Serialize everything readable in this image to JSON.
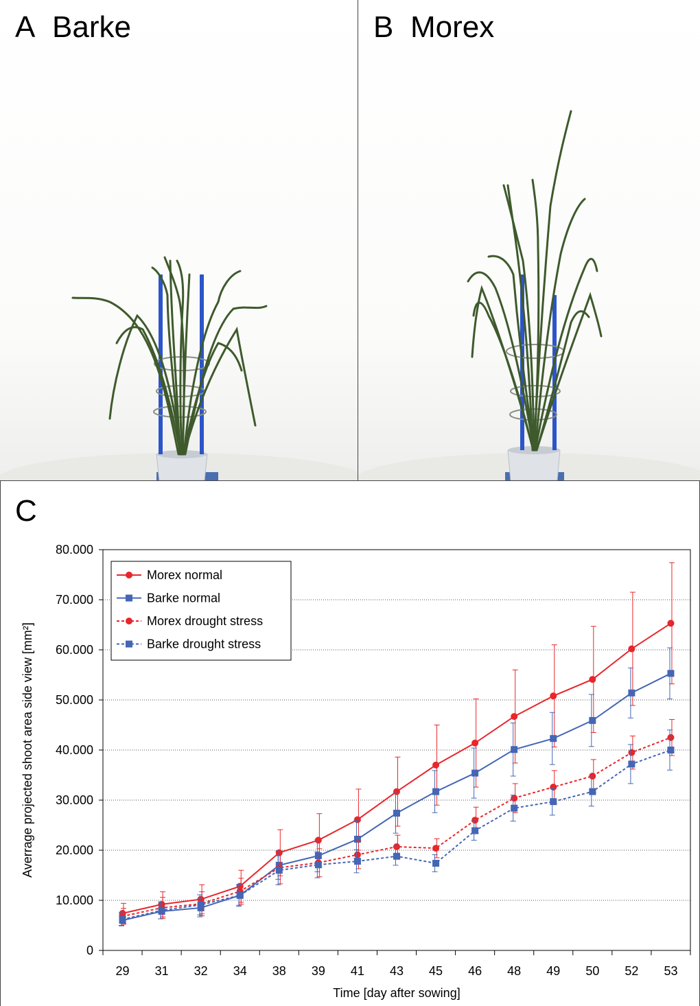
{
  "panel_a": {
    "letter": "A",
    "title": "Barke"
  },
  "panel_b": {
    "letter": "B",
    "title": "Morex"
  },
  "panel_c": {
    "letter": "C"
  },
  "chart_data": {
    "type": "line",
    "title": "",
    "xlabel": "Time [day after sowing]",
    "ylabel": "Averrage projected shoot area side view [mm²]",
    "categories": [
      "29",
      "31",
      "32",
      "34",
      "38",
      "39",
      "41",
      "43",
      "45",
      "46",
      "48",
      "49",
      "50",
      "52",
      "53"
    ],
    "ylim": [
      0,
      80000
    ],
    "yticks": [
      0,
      10000,
      20000,
      30000,
      40000,
      50000,
      60000,
      70000,
      80000
    ],
    "ytick_labels": [
      "0",
      "10.000",
      "20.000",
      "30.000",
      "40.000",
      "50.000",
      "60.000",
      "70.000",
      "80.000"
    ],
    "grid": "horizontal dotted",
    "legend_position": "top-left",
    "series": [
      {
        "name": "Morex normal",
        "color": "#e8262b",
        "line": "solid",
        "marker": "circle",
        "values": [
          7400,
          9200,
          10200,
          12800,
          19500,
          22000,
          26100,
          31700,
          37000,
          41400,
          46700,
          50800,
          54100,
          60200,
          65300
        ],
        "errors": [
          2000,
          2500,
          2900,
          3200,
          4600,
          5300,
          6100,
          6900,
          8000,
          8800,
          9300,
          10200,
          10600,
          11300,
          12100
        ]
      },
      {
        "name": "Barke normal",
        "color": "#4466b5",
        "line": "solid",
        "marker": "square",
        "values": [
          6000,
          7800,
          8500,
          11000,
          17000,
          18900,
          22200,
          27400,
          31700,
          35400,
          40100,
          42300,
          45900,
          51400,
          55300
        ],
        "errors": [
          1000,
          1500,
          1800,
          2000,
          2800,
          3200,
          3800,
          4000,
          4200,
          5000,
          5300,
          5200,
          5200,
          5000,
          5100
        ]
      },
      {
        "name": "Morex drought stress",
        "color": "#e8262b",
        "line": "dashed",
        "marker": "circle",
        "values": [
          6800,
          8500,
          9300,
          11800,
          16500,
          17500,
          19100,
          20700,
          20400,
          26000,
          30400,
          32600,
          34800,
          39500,
          42500
        ],
        "errors": [
          1600,
          2100,
          2400,
          2600,
          3200,
          2800,
          2800,
          2300,
          1900,
          2600,
          2900,
          3300,
          3300,
          3300,
          3600
        ]
      },
      {
        "name": "Barke drought stress",
        "color": "#4466b5",
        "line": "dashed",
        "marker": "square",
        "values": [
          6200,
          8000,
          9100,
          11000,
          16000,
          17100,
          17800,
          18800,
          17400,
          23900,
          28400,
          29700,
          31700,
          37200,
          40000
        ],
        "errors": [
          1300,
          1700,
          2000,
          2200,
          2900,
          2600,
          2300,
          1800,
          1700,
          1900,
          2600,
          2700,
          2900,
          3900,
          4000
        ]
      }
    ]
  }
}
